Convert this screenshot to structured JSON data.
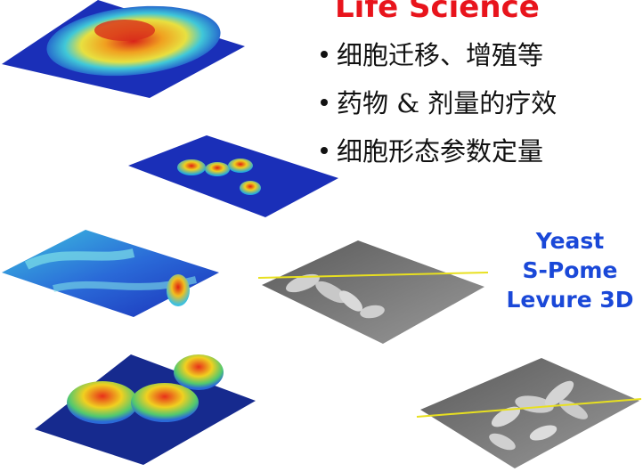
{
  "heading": "Life Science",
  "bullets": [
    "细胞迁移、增殖等",
    "药物 & 剂量的疗效",
    "细胞形态参数定量"
  ],
  "yeast_labels": [
    "Yeast",
    "S-Pome",
    "Levure 3D"
  ],
  "colors": {
    "heading": "#e8141c",
    "yeast_label": "#1a48d8",
    "plot_base": "#1a2fb8",
    "plot_hot": "#e02010",
    "plot_gray": "#7d7d7d",
    "scan_line": "#e8e020"
  },
  "images": [
    {
      "name": "cell-colony-3d-plot",
      "style": "colormap"
    },
    {
      "name": "cells-peaks-3d-plot",
      "style": "colormap"
    },
    {
      "name": "cell-migration-3d-plot",
      "style": "colormap"
    },
    {
      "name": "cell-cluster-3d-plot",
      "style": "colormap"
    },
    {
      "name": "yeast-3d-plot-top",
      "style": "grayscale"
    },
    {
      "name": "yeast-3d-plot-bottom",
      "style": "grayscale"
    }
  ]
}
